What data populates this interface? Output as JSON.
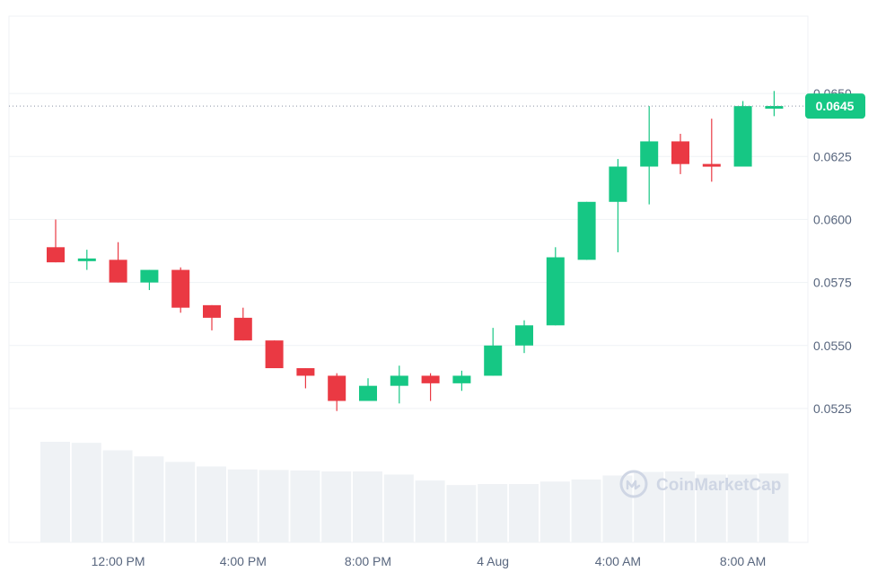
{
  "chart_data": {
    "type": "candlestick",
    "y_tick_labels": [
      "0.0525",
      "0.0550",
      "0.0575",
      "0.0600",
      "0.0625",
      "0.0650"
    ],
    "y_ticks": [
      0.0525,
      0.055,
      0.0575,
      0.06,
      0.0625,
      0.065
    ],
    "ylim": [
      0.05125,
      0.06675
    ],
    "x_tick_labels": [
      "12:00 PM",
      "4:00 PM",
      "8:00 PM",
      "4 Aug",
      "4:00 AM",
      "8:00 AM"
    ],
    "x_tick_index": [
      2,
      6,
      10,
      14,
      18,
      22
    ],
    "current_price": 0.0645,
    "current_price_label": "0.0645",
    "grid": true,
    "colors": {
      "up": "#16c784",
      "down": "#ea3943",
      "volume": "#eff2f5",
      "grid": "#eff2f5",
      "axis_text": "#58667e"
    },
    "candles": [
      {
        "open": 0.0589,
        "high": 0.06,
        "low": 0.0583,
        "close": 0.0583
      },
      {
        "open": 0.0584,
        "high": 0.0588,
        "low": 0.058,
        "close": 0.0584
      },
      {
        "open": 0.0584,
        "high": 0.0591,
        "low": 0.0575,
        "close": 0.0575
      },
      {
        "open": 0.0575,
        "high": 0.058,
        "low": 0.0572,
        "close": 0.058
      },
      {
        "open": 0.058,
        "high": 0.0581,
        "low": 0.0563,
        "close": 0.0565
      },
      {
        "open": 0.0566,
        "high": 0.0566,
        "low": 0.0556,
        "close": 0.0561
      },
      {
        "open": 0.0561,
        "high": 0.0565,
        "low": 0.0552,
        "close": 0.0552
      },
      {
        "open": 0.0552,
        "high": 0.0552,
        "low": 0.0541,
        "close": 0.0541
      },
      {
        "open": 0.0541,
        "high": 0.0541,
        "low": 0.0533,
        "close": 0.0538
      },
      {
        "open": 0.0538,
        "high": 0.0539,
        "low": 0.0524,
        "close": 0.0528
      },
      {
        "open": 0.0528,
        "high": 0.0537,
        "low": 0.0528,
        "close": 0.0534
      },
      {
        "open": 0.0534,
        "high": 0.0542,
        "low": 0.0527,
        "close": 0.0538
      },
      {
        "open": 0.0538,
        "high": 0.0539,
        "low": 0.0528,
        "close": 0.0535
      },
      {
        "open": 0.0535,
        "high": 0.054,
        "low": 0.0532,
        "close": 0.0538
      },
      {
        "open": 0.0538,
        "high": 0.0557,
        "low": 0.0538,
        "close": 0.055
      },
      {
        "open": 0.055,
        "high": 0.056,
        "low": 0.0547,
        "close": 0.0558
      },
      {
        "open": 0.0558,
        "high": 0.0589,
        "low": 0.0558,
        "close": 0.0585
      },
      {
        "open": 0.0584,
        "high": 0.0607,
        "low": 0.0584,
        "close": 0.0607
      },
      {
        "open": 0.0607,
        "high": 0.0624,
        "low": 0.0587,
        "close": 0.0621
      },
      {
        "open": 0.0621,
        "high": 0.0645,
        "low": 0.0606,
        "close": 0.0631
      },
      {
        "open": 0.0631,
        "high": 0.0634,
        "low": 0.0618,
        "close": 0.0622
      },
      {
        "open": 0.0622,
        "high": 0.064,
        "low": 0.0615,
        "close": 0.0621
      },
      {
        "open": 0.0621,
        "high": 0.0647,
        "low": 0.0621,
        "close": 0.0645
      },
      {
        "open": 0.0644,
        "high": 0.0651,
        "low": 0.0641,
        "close": 0.0645
      }
    ],
    "volume_relative": [
      1.0,
      0.99,
      0.915,
      0.855,
      0.8,
      0.755,
      0.725,
      0.72,
      0.715,
      0.705,
      0.705,
      0.675,
      0.615,
      0.57,
      0.58,
      0.58,
      0.605,
      0.625,
      0.665,
      0.7,
      0.705,
      0.675,
      0.675,
      0.685
    ],
    "watermark": "CoinMarketCap"
  }
}
